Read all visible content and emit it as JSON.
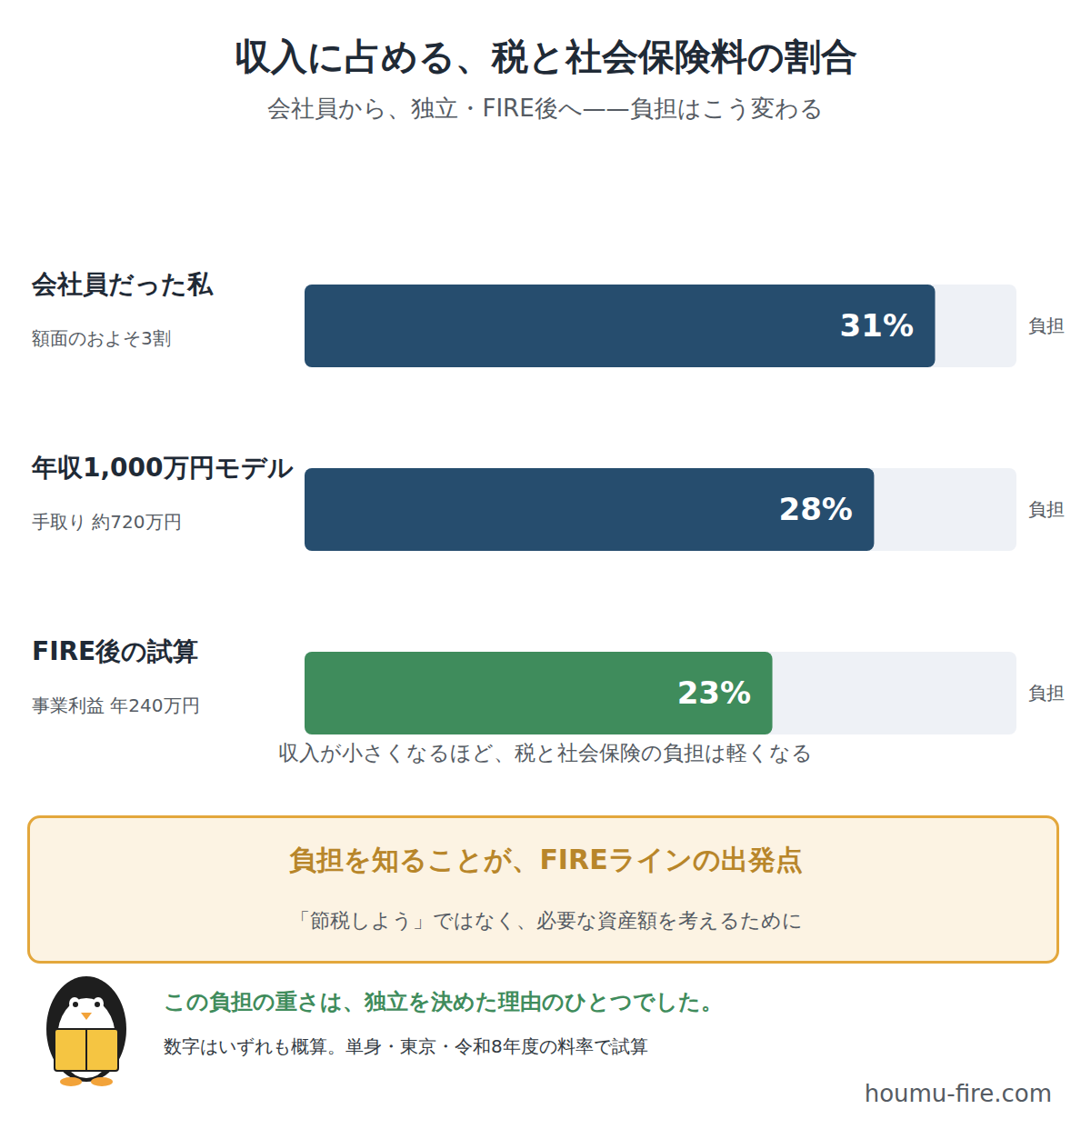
{
  "chart_data": {
    "type": "bar",
    "orientation": "horizontal",
    "title": "収入に占める、税と社会保険料の割合",
    "subtitle": "会社員から、独立・FIRE後へ——負担はこう変わる",
    "categories": [
      "会社員だった私",
      "年収1,000万円モデル",
      "FIRE後の試算"
    ],
    "category_notes": [
      "額面のおよそ3割",
      "手取り 約720万円",
      "事業利益 年240万円"
    ],
    "values": [
      31,
      28,
      23
    ],
    "value_labels": [
      "31%",
      "28%",
      "23%"
    ],
    "end_labels": [
      "負担",
      "負担",
      "負担"
    ],
    "colors": [
      "#264d6e",
      "#264d6e",
      "#3f8c5c"
    ],
    "xlim": [
      0,
      35
    ],
    "xticks": [],
    "tick_labels": false,
    "grid": false,
    "data_labels": true,
    "annotations": {
      "caption": "収入が小さくなるほど、税と社会保険の負担は軽くなる",
      "callout_title": "負担を知ることが、FIREラインの出発点",
      "callout_text": "「節税しよう」ではなく、必要な資産額を考えるために",
      "message": "この負担の重さは、独立を決めた理由のひとつでした。",
      "note": "数字はいずれも概算。単身・東京・令和8年度の料率で試算",
      "source": "houmu-fire.com"
    }
  }
}
